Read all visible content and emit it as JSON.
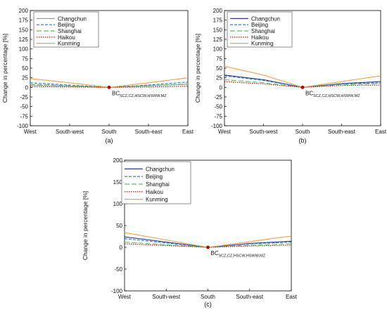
{
  "chart_data": [
    {
      "type": "line",
      "caption": "(a)",
      "categories": [
        "West",
        "South-west",
        "South",
        "South-east",
        "East"
      ],
      "ylabel": "Change in percentage [%]",
      "ylim": [
        -100,
        200
      ],
      "yticks": [
        -100,
        -75,
        -50,
        -25,
        0,
        25,
        50,
        75,
        100,
        125,
        150,
        175,
        200
      ],
      "annotation": {
        "main": "BC",
        "sub": "SCZ,CZ,HSCW,HSWW,MZ"
      },
      "series": [
        {
          "name": "Changchun",
          "color": "#9a9a9a",
          "dash": "",
          "values": [
            6,
            3,
            0,
            4,
            8
          ]
        },
        {
          "name": "Beijing",
          "color": "#2f74b5",
          "dash": "4,2",
          "values": [
            12,
            6,
            0,
            6,
            14
          ]
        },
        {
          "name": "Shanghai",
          "color": "#5fbf5f",
          "dash": "7,3",
          "values": [
            8,
            4,
            0,
            4,
            9
          ]
        },
        {
          "name": "Haikou",
          "color": "#c00000",
          "dash": "1.5,1.5",
          "values": [
            2,
            1,
            0,
            1,
            3
          ]
        },
        {
          "name": "Kunming",
          "color": "#f0a050",
          "dash": "",
          "values": [
            23,
            12,
            0,
            12,
            25
          ]
        }
      ],
      "legend": "top-left",
      "grid": false
    },
    {
      "type": "line",
      "caption": "(b)",
      "categories": [
        "West",
        "South-west",
        "South",
        "South-east",
        "East"
      ],
      "ylabel": "Change in percentage [%]",
      "ylim": [
        -100,
        200
      ],
      "yticks": [
        -100,
        -75,
        -50,
        -25,
        0,
        25,
        50,
        75,
        100,
        125,
        150,
        175,
        200
      ],
      "annotation": {
        "main": "BC",
        "sub": "SCZ,CZ,HSCW,HSWW,MZ"
      },
      "series": [
        {
          "name": "Changchun",
          "color": "#2d3d8f",
          "dash": "",
          "values": [
            32,
            20,
            0,
            10,
            15
          ]
        },
        {
          "name": "Beijing",
          "color": "#2f74b5",
          "dash": "4,2",
          "values": [
            30,
            18,
            0,
            9,
            12
          ]
        },
        {
          "name": "Shanghai",
          "color": "#5fbf5f",
          "dash": "7,3",
          "values": [
            20,
            12,
            0,
            7,
            10
          ]
        },
        {
          "name": "Haikou",
          "color": "#c00000",
          "dash": "1.5,1.5",
          "values": [
            15,
            9,
            0,
            5,
            6
          ]
        },
        {
          "name": "Kunming",
          "color": "#f0a050",
          "dash": "",
          "values": [
            55,
            32,
            0,
            15,
            30
          ]
        }
      ],
      "legend": "top-left",
      "grid": false
    },
    {
      "type": "line",
      "caption": "(c)",
      "categories": [
        "West",
        "South-west",
        "South",
        "South-east",
        "East"
      ],
      "ylabel": "Change in percentage [%]",
      "ylim": [
        -100,
        200
      ],
      "yticks": [
        -100,
        -50,
        0,
        50,
        100,
        150,
        200
      ],
      "annotation": {
        "main": "BC",
        "sub": "SCZ,CZ,HSCW,HSWW,MZ"
      },
      "series": [
        {
          "name": "Changchun",
          "color": "#2d3d8f",
          "dash": "",
          "values": [
            24,
            12,
            0,
            9,
            14
          ]
        },
        {
          "name": "Beijing",
          "color": "#2f74b5",
          "dash": "4,2",
          "values": [
            20,
            10,
            0,
            8,
            12
          ]
        },
        {
          "name": "Shanghai",
          "color": "#5fbf5f",
          "dash": "7,3",
          "values": [
            12,
            6,
            0,
            5,
            8
          ]
        },
        {
          "name": "Haikou",
          "color": "#c00000",
          "dash": "1.5,1.5",
          "values": [
            8,
            4,
            0,
            3,
            5
          ]
        },
        {
          "name": "Kunming",
          "color": "#f0a050",
          "dash": "",
          "values": [
            34,
            17,
            0,
            13,
            26
          ]
        }
      ],
      "legend": "top-left",
      "grid": false
    }
  ]
}
